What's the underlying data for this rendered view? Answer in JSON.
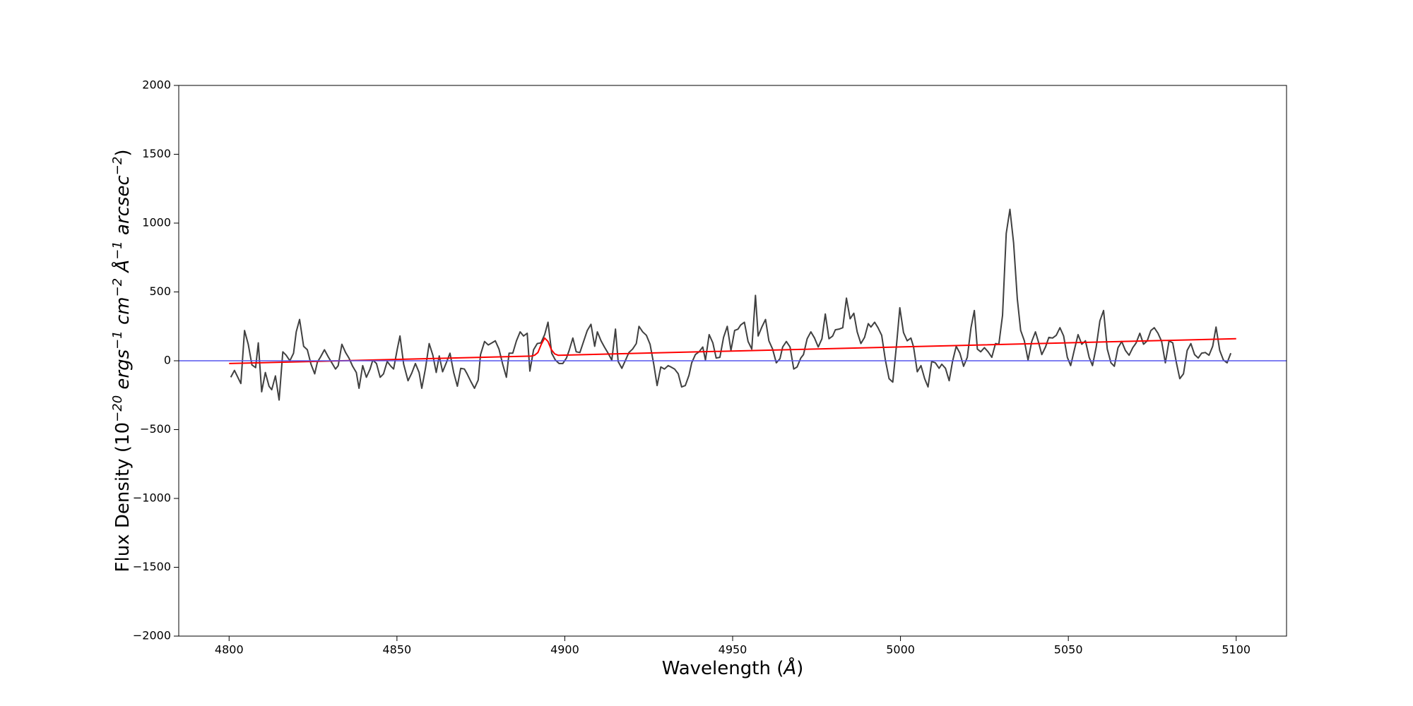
{
  "chart_data": {
    "type": "line",
    "xlabel": [
      "Wavelength (",
      "Å",
      ")"
    ],
    "ylabel": [
      "Flux Density (10",
      "−20",
      " ergs",
      "−1",
      " cm",
      "−2",
      " Å",
      "−1",
      " arcsec",
      "−2",
      ")"
    ],
    "xlim": [
      4785,
      5115
    ],
    "ylim": [
      -2000,
      2000
    ],
    "xticks": [
      4800,
      4850,
      4900,
      4950,
      5000,
      5050,
      5100
    ],
    "yticks": [
      {
        "value": -2000,
        "label": "−2000"
      },
      {
        "value": -1500,
        "label": "−1500"
      },
      {
        "value": -1000,
        "label": "−1000"
      },
      {
        "value": -500,
        "label": "−500"
      },
      0,
      500,
      1000,
      1500,
      2000
    ],
    "hline": {
      "value": 0,
      "color": "#5555ee"
    },
    "series": [
      {
        "color": "#404040",
        "x": [
          4800.5,
          4801.6,
          4803.5,
          4804.6,
          4805.7,
          4806.8,
          4807.9,
          4808.7,
          4809.7,
          4810.8,
          4811.9,
          4812.7,
          4813.8,
          4814.9,
          4816,
          4817,
          4818.1,
          4819.2,
          4820,
          4821,
          4822.2,
          4823.3,
          4824.4,
          4825.5,
          4826.3,
          4827.3,
          4828.4,
          4829.5,
          4830.6,
          4831.7,
          4832.5,
          4833.6,
          4834.7,
          4835.7,
          4836.8,
          4837.9,
          4838.7,
          4839.8,
          4840.9,
          4842,
          4842.8,
          4843.9,
          4845,
          4846,
          4847.1,
          4848.2,
          4849,
          4850.1,
          4850.9,
          4852,
          4853.3,
          4854.4,
          4855.5,
          4856.6,
          4857.4,
          4858.5,
          4859.6,
          4860.7,
          4861.7,
          4862.6,
          4863.6,
          4864.7,
          4865.8,
          4866.9,
          4868,
          4869,
          4870.1,
          4870.9,
          4872,
          4873.1,
          4874.2,
          4874.9,
          4876.1,
          4877.2,
          4878.3,
          4879.3,
          4880.4,
          4881.5,
          4882.6,
          4883.4,
          4884.5,
          4885.6,
          4886.7,
          4887.7,
          4888.8,
          4889.6,
          4890.7,
          4891.8,
          4892.9,
          4894,
          4895,
          4896.1,
          4897.2,
          4898.3,
          4899.4,
          4900.5,
          4901.3,
          4902.4,
          4903.4,
          4904.5,
          4905.6,
          4906.7,
          4907.8,
          4908.9,
          4909.7,
          4910.8,
          4911.8,
          4912.9,
          4914,
          4915.1,
          4915.9,
          4917,
          4918.1,
          4919.1,
          4920.2,
          4921.3,
          4922.1,
          4923.2,
          4924.3,
          4925.4,
          4926.5,
          4927.5,
          4928.6,
          4929.7,
          4930.8,
          4931.6,
          4932.7,
          4933.8,
          4934.8,
          4935.9,
          4937,
          4937.8,
          4938.9,
          4940,
          4941.1,
          4941.9,
          4943,
          4944.1,
          4945.1,
          4946.2,
          4947.3,
          4948.4,
          4949.5,
          4950.6,
          4951.6,
          4952.4,
          4953.5,
          4954.6,
          4955.7,
          4956.8,
          4957.6,
          4958.7,
          4959.8,
          4960.8,
          4961.9,
          4963,
          4964.1,
          4964.9,
          4966,
          4967.1,
          4968.2,
          4969.2,
          4970.3,
          4971.1,
          4972.2,
          4973.3,
          4974.4,
          4975.5,
          4976.6,
          4977.6,
          4978.7,
          4979.8,
          4980.6,
          4981.7,
          4982.8,
          4983.9,
          4985,
          4986.1,
          4987.1,
          4988.2,
          4989.3,
          4990.4,
          4991.2,
          4992.3,
          4993.3,
          4994.4,
          4995.5,
          4996.6,
          4997.7,
          4998.8,
          4999.8,
          5000.9,
          5002,
          5003.1,
          5003.9,
          5005,
          5006.1,
          5007.2,
          5008.2,
          5009.3,
          5010.4,
          5011.5,
          5012.3,
          5013.4,
          5014.5,
          5015.5,
          5016.6,
          5017.7,
          5018.8,
          5019.9,
          5021,
          5022,
          5022.9,
          5023.9,
          5025,
          5026.1,
          5027.2,
          5028.3,
          5029.3,
          5030.4,
          5031.5,
          5032.6,
          5033.7,
          5034.8,
          5035.8,
          5036.9,
          5038,
          5039.1,
          5040.2,
          5041,
          5042.1,
          5043.2,
          5044.2,
          5045.3,
          5046.4,
          5047.5,
          5048.6,
          5049.7,
          5050.7,
          5051.8,
          5052.9,
          5054,
          5055.1,
          5056.2,
          5057.2,
          5058.3,
          5059.4,
          5060.5,
          5061.6,
          5062.7,
          5063.7,
          5064.8,
          5065.9,
          5067,
          5068.1,
          5069.2,
          5070.2,
          5071.3,
          5072.4,
          5073.5,
          5074.6,
          5075.6,
          5076.7,
          5077.8,
          5078.9,
          5080,
          5081.1,
          5082.2,
          5083.2,
          5084.3,
          5085.4,
          5086.5,
          5087.6,
          5088.7,
          5089.7,
          5090.8,
          5091.9,
          5093,
          5094,
          5095.1,
          5096.2,
          5097.3,
          5098.4
        ],
        "values": [
          -120,
          -70,
          -165,
          220,
          120,
          -30,
          -50,
          130,
          -225,
          -85,
          -185,
          -210,
          -110,
          -285,
          65,
          40,
          0,
          55,
          210,
          300,
          105,
          80,
          -25,
          -95,
          -10,
          30,
          80,
          30,
          -15,
          -60,
          -35,
          120,
          60,
          20,
          -40,
          -85,
          -200,
          -35,
          -120,
          -60,
          5,
          -20,
          -120,
          -95,
          -5,
          -40,
          -60,
          85,
          180,
          -25,
          -145,
          -90,
          -20,
          -85,
          -200,
          -55,
          125,
          40,
          -85,
          35,
          -80,
          -15,
          55,
          -85,
          -185,
          -55,
          -60,
          -95,
          -150,
          -200,
          -140,
          45,
          140,
          115,
          130,
          145,
          85,
          -25,
          -120,
          55,
          55,
          145,
          210,
          180,
          200,
          -75,
          80,
          125,
          130,
          190,
          280,
          55,
          5,
          -20,
          -20,
          20,
          75,
          165,
          65,
          60,
          140,
          220,
          265,
          105,
          210,
          145,
          100,
          55,
          5,
          230,
          -5,
          -55,
          5,
          60,
          85,
          125,
          250,
          210,
          185,
          120,
          -25,
          -180,
          -45,
          -60,
          -35,
          -45,
          -60,
          -95,
          -190,
          -180,
          -105,
          -15,
          45,
          65,
          100,
          5,
          190,
          130,
          20,
          25,
          170,
          250,
          75,
          220,
          230,
          260,
          280,
          140,
          85,
          475,
          180,
          245,
          300,
          145,
          85,
          -15,
          15,
          100,
          140,
          100,
          -60,
          -45,
          20,
          45,
          160,
          210,
          165,
          100,
          160,
          340,
          160,
          180,
          225,
          230,
          240,
          455,
          305,
          345,
          210,
          125,
          170,
          270,
          245,
          280,
          240,
          185,
          5,
          -130,
          -155,
          110,
          385,
          205,
          145,
          165,
          100,
          -80,
          -35,
          -130,
          -190,
          -5,
          -15,
          -55,
          -25,
          -55,
          -145,
          -5,
          105,
          55,
          -40,
          25,
          240,
          365,
          85,
          65,
          95,
          65,
          25,
          125,
          120,
          330,
          925,
          1100,
          855,
          450,
          220,
          145,
          5,
          140,
          210,
          145,
          45,
          100,
          170,
          165,
          185,
          240,
          180,
          25,
          -35,
          80,
          190,
          120,
          145,
          25,
          -35,
          100,
          290,
          365,
          85,
          -15,
          -40,
          95,
          140,
          75,
          40,
          95,
          130,
          200,
          120,
          145,
          220,
          240,
          200,
          140,
          -15,
          145,
          130,
          -15,
          -130,
          -95,
          75,
          125,
          45,
          20,
          55,
          60,
          40,
          105,
          245,
          75,
          5,
          -15,
          55
        ]
      },
      {
        "color": "#ff0000",
        "x": [
          4800,
          4890,
          4891,
          4892,
          4893,
          4894,
          4895,
          4896,
          4897,
          4898,
          5100
        ],
        "values": [
          -20,
          34,
          40,
          60,
          120,
          165,
          140,
          80,
          50,
          40,
          160
        ]
      }
    ]
  }
}
